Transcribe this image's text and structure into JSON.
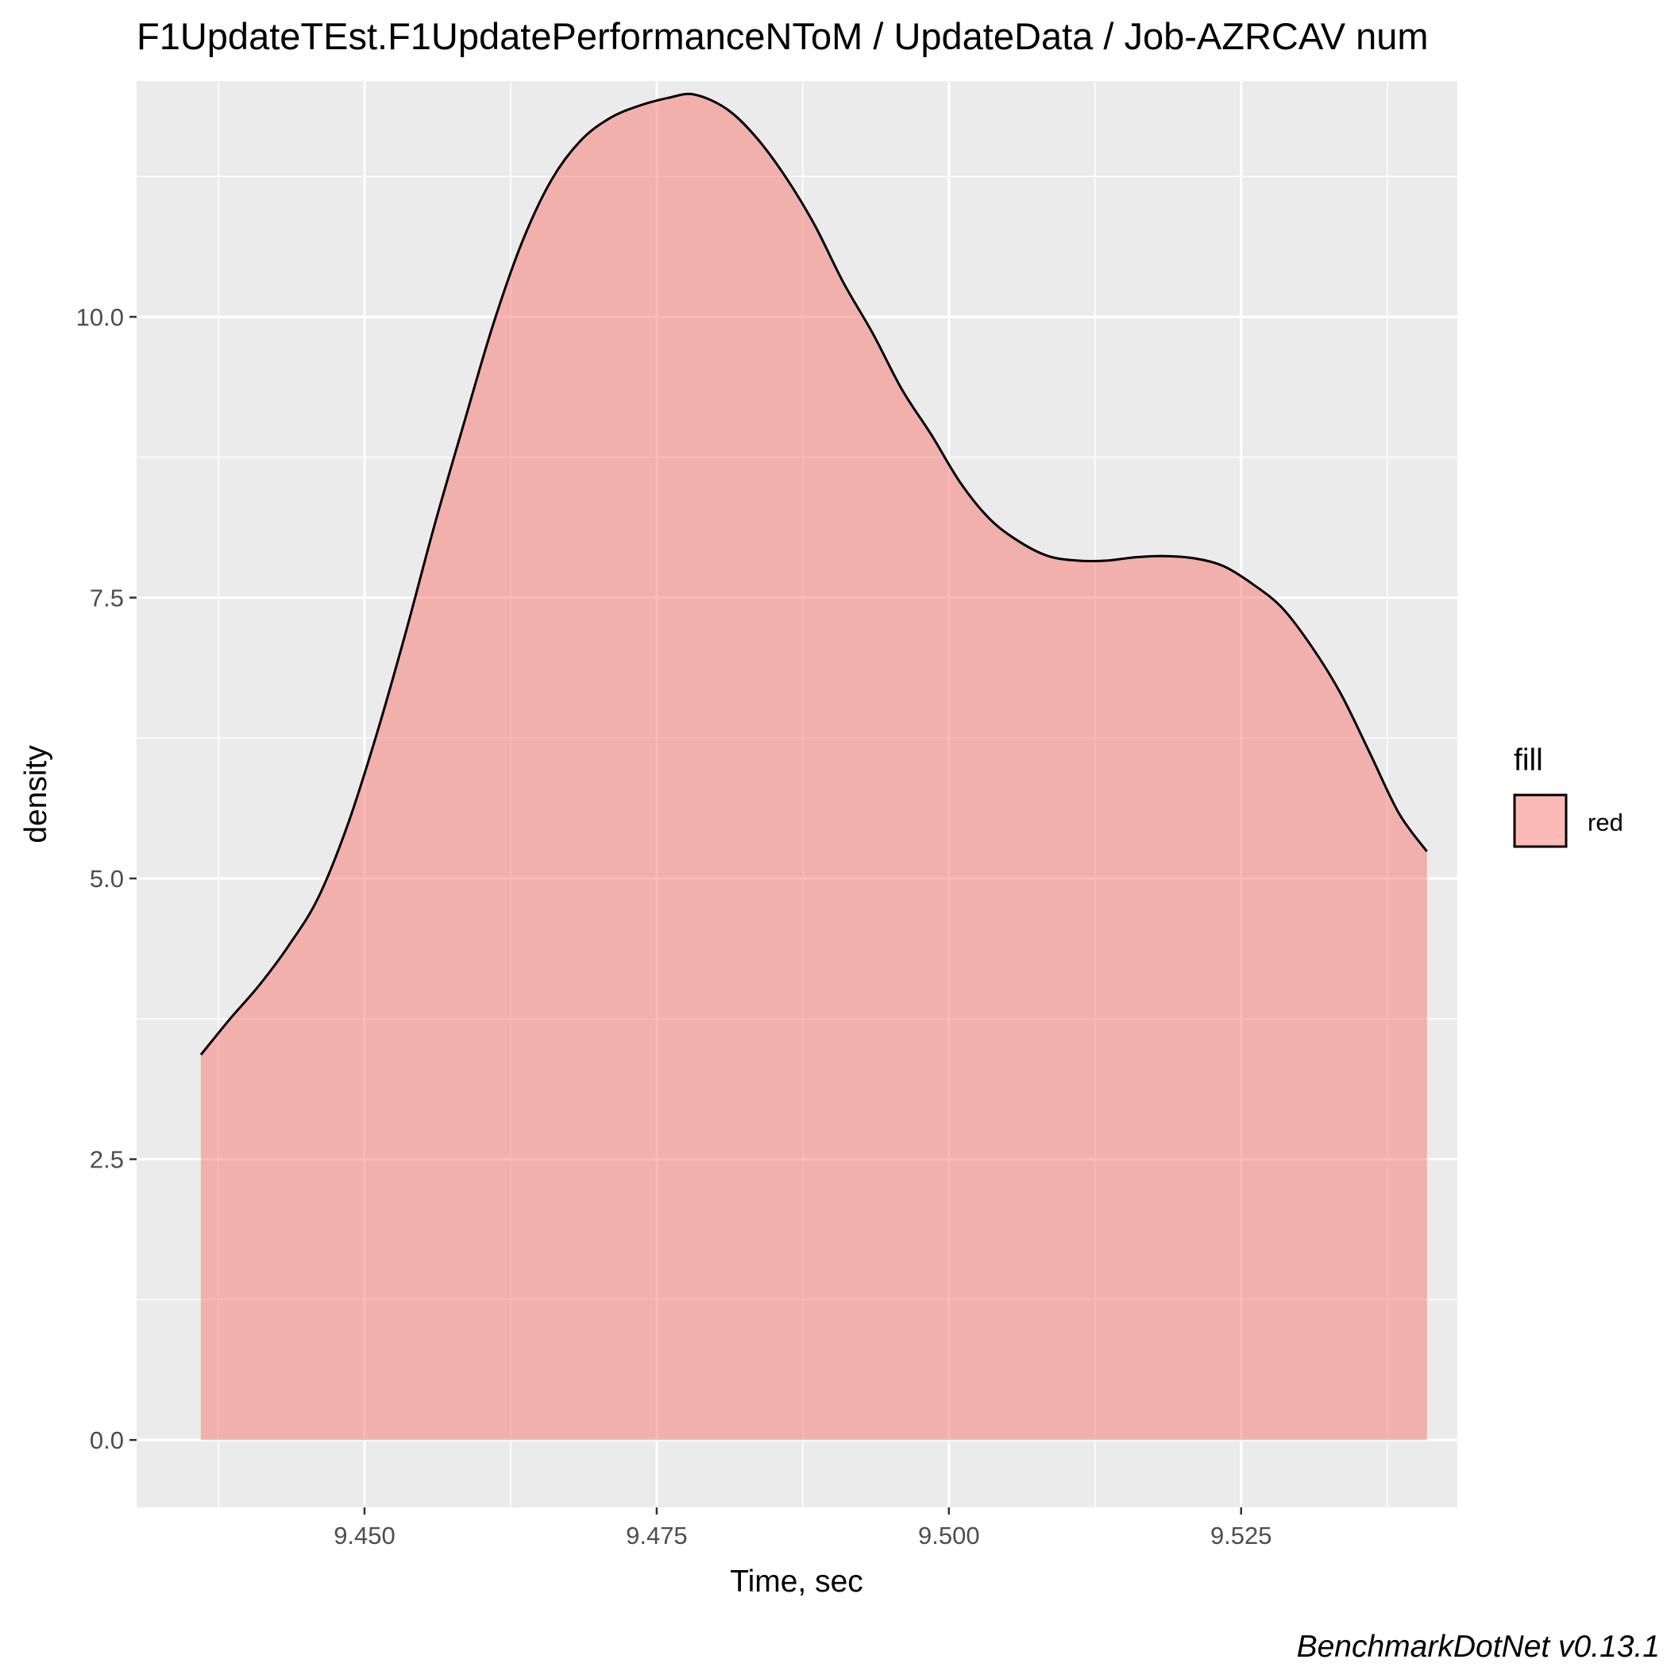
{
  "chart_data": {
    "type": "area",
    "title": "F1UpdateTEst.F1UpdatePerformanceNToM / UpdateData / Job-AZRCAV num",
    "xlabel": "Time, sec",
    "ylabel": "density",
    "caption": "BenchmarkDotNet v0.13.1",
    "xlim": [
      9.4305,
      9.5435
    ],
    "ylim": [
      -0.6,
      12.1
    ],
    "x_ticks": [
      9.45,
      9.475,
      9.5,
      9.525
    ],
    "x_tick_labels": [
      "9.450",
      "9.475",
      "9.500",
      "9.525"
    ],
    "y_ticks": [
      0,
      2.5,
      5,
      7.5,
      10
    ],
    "y_tick_labels": [
      "0.0",
      "2.5",
      "5.0",
      "7.5",
      "10.0"
    ],
    "grid": true,
    "legend": {
      "title": "fill",
      "position": "right",
      "entries": [
        {
          "label": "red",
          "color": "#F8766D"
        }
      ]
    },
    "fill_color": "#F8766D",
    "fill_opacity": 0.5,
    "line_color": "#000000",
    "panel_background": "#EBEBEB",
    "series": [
      {
        "x": [
          9.436,
          9.4385,
          9.441,
          9.4435,
          9.446,
          9.4485,
          9.451,
          9.4535,
          9.456,
          9.4585,
          9.461,
          9.4635,
          9.466,
          9.4685,
          9.471,
          9.4735,
          9.476,
          9.4782,
          9.481,
          9.4835,
          9.486,
          9.4885,
          9.491,
          9.4935,
          9.496,
          9.4985,
          9.501,
          9.5035,
          9.506,
          9.5085,
          9.511,
          9.5135,
          9.516,
          9.5185,
          9.521,
          9.5235,
          9.526,
          9.5285,
          9.531,
          9.5335,
          9.536,
          9.5385,
          9.5409
        ],
        "y": [
          3.43,
          3.75,
          4.05,
          4.4,
          4.82,
          5.46,
          6.27,
          7.18,
          8.15,
          9.05,
          9.93,
          10.67,
          11.22,
          11.57,
          11.77,
          11.88,
          11.95,
          11.98,
          11.85,
          11.6,
          11.25,
          10.82,
          10.3,
          9.85,
          9.35,
          8.95,
          8.52,
          8.2,
          8.0,
          7.87,
          7.83,
          7.83,
          7.86,
          7.87,
          7.85,
          7.78,
          7.62,
          7.41,
          7.07,
          6.65,
          6.12,
          5.58,
          5.24
        ]
      }
    ]
  }
}
